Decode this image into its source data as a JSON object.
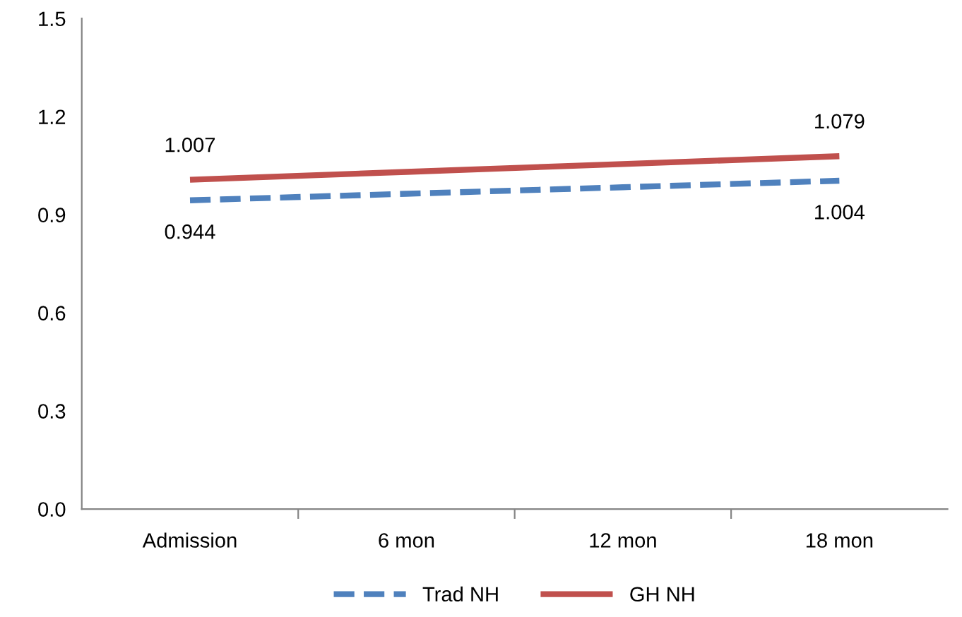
{
  "chart_data": {
    "type": "line",
    "categories": [
      "Admission",
      "6 mon",
      "12 mon",
      "18 mon"
    ],
    "series": [
      {
        "name": "Trad NH",
        "color": "#4f81bd",
        "line_style": "dashed",
        "values": [
          0.944,
          0.964,
          0.984,
          1.004
        ],
        "value_labels": [
          "0.944",
          null,
          null,
          "1.004"
        ]
      },
      {
        "name": "GH NH",
        "color": "#c0504d",
        "line_style": "solid",
        "values": [
          1.007,
          1.031,
          1.055,
          1.079
        ],
        "value_labels": [
          "1.007",
          null,
          null,
          "1.079"
        ]
      }
    ],
    "ylim": [
      0,
      1.5
    ],
    "yticks": [
      {
        "value": 0,
        "label": "0.0"
      },
      {
        "value": 0.3,
        "label": "0.3"
      },
      {
        "value": 0.6,
        "label": "0.6"
      },
      {
        "value": 0.9,
        "label": "0.9"
      },
      {
        "value": 1.2,
        "label": "1.2"
      },
      {
        "value": 1.5,
        "label": "1.5"
      }
    ],
    "grid": false,
    "legend": "bottom",
    "marker": "none"
  }
}
